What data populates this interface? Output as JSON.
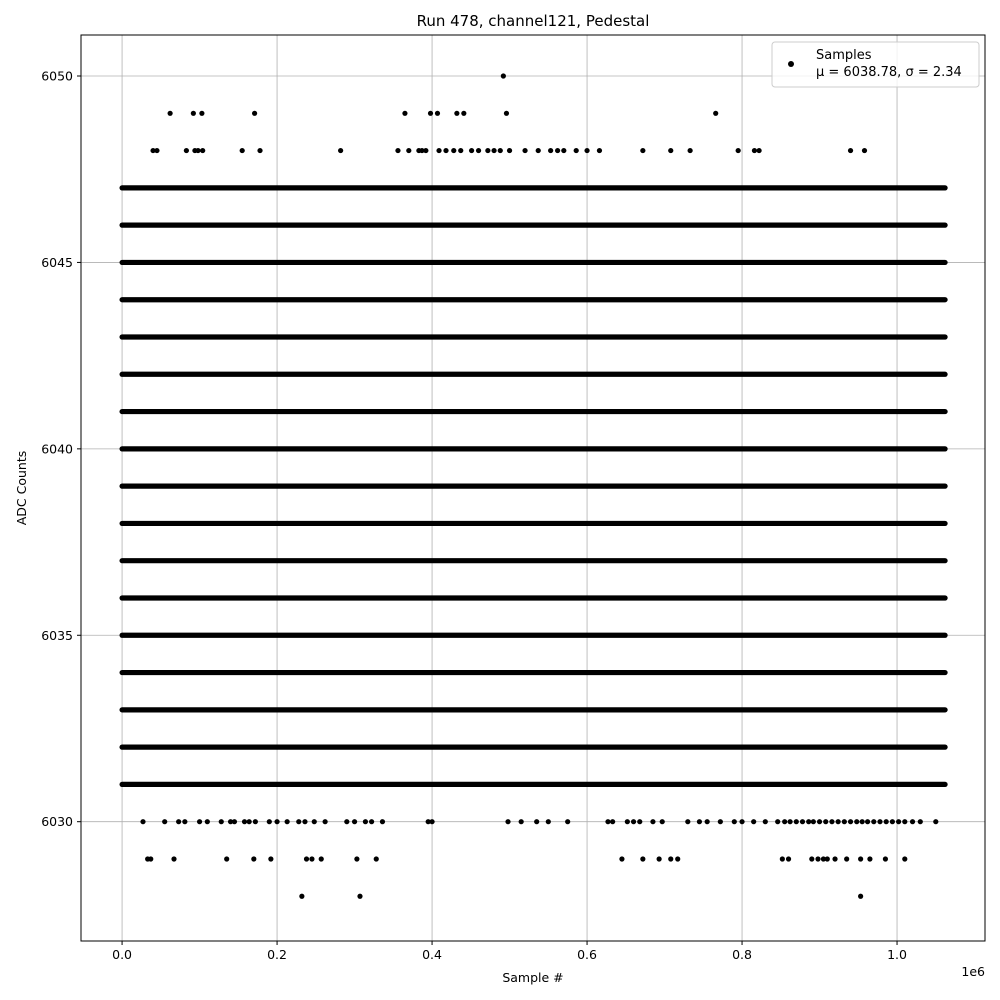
{
  "chart_data": {
    "type": "scatter",
    "title": "Run 478, channel121, Pedestal",
    "xlabel": "Sample #",
    "ylabel": "ADC Counts",
    "x_offset_label": "1e6",
    "xlim": [
      -0.053,
      1.1135
    ],
    "ylim": [
      6026.8,
      6051.1
    ],
    "x_ticks": [
      0.0,
      0.2,
      0.4,
      0.6,
      0.8,
      1.0
    ],
    "x_tick_labels": [
      "0.0",
      "0.2",
      "0.4",
      "0.6",
      "0.8",
      "1.0"
    ],
    "y_ticks": [
      6030,
      6035,
      6040,
      6045,
      6050
    ],
    "y_tick_labels": [
      "6030",
      "6035",
      "6040",
      "6045",
      "6050"
    ],
    "grid": true,
    "legend_position": "top-right",
    "series": [
      {
        "name": "Samples",
        "name_detail": "μ = 6038.78, σ = 2.34",
        "color": "#000000",
        "marker": "circle",
        "x_range": [
          0.0,
          1.062
        ],
        "dense_levels": [
          6031,
          6032,
          6033,
          6034,
          6035,
          6036,
          6037,
          6038,
          6039,
          6040,
          6041,
          6042,
          6043,
          6044,
          6045,
          6046,
          6047
        ],
        "sparse_points": [
          [
            0.492,
            6050
          ],
          [
            0.062,
            6049
          ],
          [
            0.092,
            6049
          ],
          [
            0.103,
            6049
          ],
          [
            0.171,
            6049
          ],
          [
            0.365,
            6049
          ],
          [
            0.398,
            6049
          ],
          [
            0.407,
            6049
          ],
          [
            0.432,
            6049
          ],
          [
            0.441,
            6049
          ],
          [
            0.496,
            6049
          ],
          [
            0.766,
            6049
          ],
          [
            0.04,
            6048
          ],
          [
            0.045,
            6048
          ],
          [
            0.083,
            6048
          ],
          [
            0.094,
            6048
          ],
          [
            0.098,
            6048
          ],
          [
            0.104,
            6048
          ],
          [
            0.155,
            6048
          ],
          [
            0.178,
            6048
          ],
          [
            0.282,
            6048
          ],
          [
            0.356,
            6048
          ],
          [
            0.37,
            6048
          ],
          [
            0.383,
            6048
          ],
          [
            0.387,
            6048
          ],
          [
            0.392,
            6048
          ],
          [
            0.409,
            6048
          ],
          [
            0.418,
            6048
          ],
          [
            0.428,
            6048
          ],
          [
            0.437,
            6048
          ],
          [
            0.451,
            6048
          ],
          [
            0.46,
            6048
          ],
          [
            0.472,
            6048
          ],
          [
            0.48,
            6048
          ],
          [
            0.488,
            6048
          ],
          [
            0.5,
            6048
          ],
          [
            0.52,
            6048
          ],
          [
            0.537,
            6048
          ],
          [
            0.553,
            6048
          ],
          [
            0.562,
            6048
          ],
          [
            0.57,
            6048
          ],
          [
            0.586,
            6048
          ],
          [
            0.6,
            6048
          ],
          [
            0.616,
            6048
          ],
          [
            0.672,
            6048
          ],
          [
            0.708,
            6048
          ],
          [
            0.733,
            6048
          ],
          [
            0.795,
            6048
          ],
          [
            0.816,
            6048
          ],
          [
            0.822,
            6048
          ],
          [
            0.94,
            6048
          ],
          [
            0.958,
            6048
          ],
          [
            0.027,
            6030
          ],
          [
            0.055,
            6030
          ],
          [
            0.073,
            6030
          ],
          [
            0.081,
            6030
          ],
          [
            0.1,
            6030
          ],
          [
            0.11,
            6030
          ],
          [
            0.128,
            6030
          ],
          [
            0.14,
            6030
          ],
          [
            0.145,
            6030
          ],
          [
            0.158,
            6030
          ],
          [
            0.164,
            6030
          ],
          [
            0.172,
            6030
          ],
          [
            0.19,
            6030
          ],
          [
            0.2,
            6030
          ],
          [
            0.213,
            6030
          ],
          [
            0.228,
            6030
          ],
          [
            0.236,
            6030
          ],
          [
            0.248,
            6030
          ],
          [
            0.262,
            6030
          ],
          [
            0.29,
            6030
          ],
          [
            0.3,
            6030
          ],
          [
            0.314,
            6030
          ],
          [
            0.322,
            6030
          ],
          [
            0.336,
            6030
          ],
          [
            0.395,
            6030
          ],
          [
            0.4,
            6030
          ],
          [
            0.498,
            6030
          ],
          [
            0.515,
            6030
          ],
          [
            0.535,
            6030
          ],
          [
            0.55,
            6030
          ],
          [
            0.575,
            6030
          ],
          [
            0.627,
            6030
          ],
          [
            0.633,
            6030
          ],
          [
            0.652,
            6030
          ],
          [
            0.66,
            6030
          ],
          [
            0.668,
            6030
          ],
          [
            0.685,
            6030
          ],
          [
            0.697,
            6030
          ],
          [
            0.73,
            6030
          ],
          [
            0.745,
            6030
          ],
          [
            0.755,
            6030
          ],
          [
            0.772,
            6030
          ],
          [
            0.79,
            6030
          ],
          [
            0.8,
            6030
          ],
          [
            0.815,
            6030
          ],
          [
            0.83,
            6030
          ],
          [
            0.846,
            6030
          ],
          [
            0.855,
            6030
          ],
          [
            0.862,
            6030
          ],
          [
            0.87,
            6030
          ],
          [
            0.878,
            6030
          ],
          [
            0.886,
            6030
          ],
          [
            0.892,
            6030
          ],
          [
            0.9,
            6030
          ],
          [
            0.908,
            6030
          ],
          [
            0.916,
            6030
          ],
          [
            0.924,
            6030
          ],
          [
            0.932,
            6030
          ],
          [
            0.94,
            6030
          ],
          [
            0.948,
            6030
          ],
          [
            0.955,
            6030
          ],
          [
            0.962,
            6030
          ],
          [
            0.97,
            6030
          ],
          [
            0.978,
            6030
          ],
          [
            0.986,
            6030
          ],
          [
            0.994,
            6030
          ],
          [
            1.002,
            6030
          ],
          [
            1.01,
            6030
          ],
          [
            1.02,
            6030
          ],
          [
            1.03,
            6030
          ],
          [
            1.05,
            6030
          ],
          [
            0.033,
            6029
          ],
          [
            0.037,
            6029
          ],
          [
            0.067,
            6029
          ],
          [
            0.135,
            6029
          ],
          [
            0.17,
            6029
          ],
          [
            0.192,
            6029
          ],
          [
            0.238,
            6029
          ],
          [
            0.245,
            6029
          ],
          [
            0.257,
            6029
          ],
          [
            0.303,
            6029
          ],
          [
            0.328,
            6029
          ],
          [
            0.645,
            6029
          ],
          [
            0.672,
            6029
          ],
          [
            0.693,
            6029
          ],
          [
            0.708,
            6029
          ],
          [
            0.717,
            6029
          ],
          [
            0.852,
            6029
          ],
          [
            0.86,
            6029
          ],
          [
            0.89,
            6029
          ],
          [
            0.898,
            6029
          ],
          [
            0.905,
            6029
          ],
          [
            0.91,
            6029
          ],
          [
            0.92,
            6029
          ],
          [
            0.935,
            6029
          ],
          [
            0.953,
            6029
          ],
          [
            0.965,
            6029
          ],
          [
            0.985,
            6029
          ],
          [
            1.01,
            6029
          ],
          [
            0.232,
            6028
          ],
          [
            0.307,
            6028
          ],
          [
            0.953,
            6028
          ]
        ]
      }
    ]
  }
}
